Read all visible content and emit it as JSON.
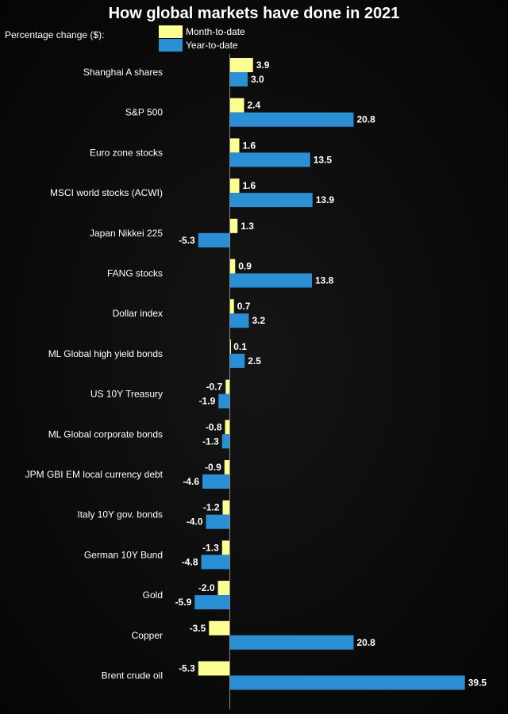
{
  "chart_data": {
    "type": "bar",
    "orientation": "horizontal",
    "title": "How global markets have done in 2021",
    "units_caption": "Percentage change ($):",
    "categories": [
      "Shanghai A shares",
      "S&P 500",
      "Euro zone stocks",
      "MSCI world stocks (ACWI)",
      "Japan Nikkei 225",
      "FANG stocks",
      "Dollar index",
      "ML Global high yield bonds",
      "US 10Y Treasury",
      "ML Global corporate bonds",
      "JPM GBI EM local currency debt",
      "Italy 10Y gov. bonds",
      "German 10Y Bund",
      "Gold",
      "Copper",
      "Brent crude oil"
    ],
    "series": [
      {
        "name": "Month-to-date",
        "color": "#fdfd96",
        "values": [
          3.9,
          2.4,
          1.6,
          1.6,
          1.3,
          0.9,
          0.7,
          0.1,
          -0.7,
          -0.8,
          -0.9,
          -1.2,
          -1.3,
          -2.0,
          -3.5,
          -5.3
        ],
        "labels": [
          "3.9",
          "2.4",
          "1.6",
          "1.6",
          "1.3",
          "0.9",
          "0.7",
          "0.1",
          "-0.7",
          "-0.8",
          "-0.9",
          "-1.2",
          "-1.3",
          "-2.0",
          "-3.5",
          "-5.3"
        ]
      },
      {
        "name": "Year-to-date",
        "color": "#2a8fd4",
        "values": [
          3.0,
          20.8,
          13.5,
          13.9,
          -5.3,
          13.8,
          3.2,
          2.5,
          -1.9,
          -1.3,
          -4.6,
          -4.0,
          -4.8,
          -5.9,
          20.8,
          39.5
        ],
        "labels": [
          "3.0",
          "20.8",
          "13.5",
          "13.9",
          "-5.3",
          "13.8",
          "3.2",
          "2.5",
          "-1.9",
          "-1.3",
          "-4.6",
          "-4.0",
          "-4.8",
          "-5.9",
          "20.8",
          "39.5"
        ]
      }
    ],
    "grid": false,
    "legend_position": "top-left"
  }
}
